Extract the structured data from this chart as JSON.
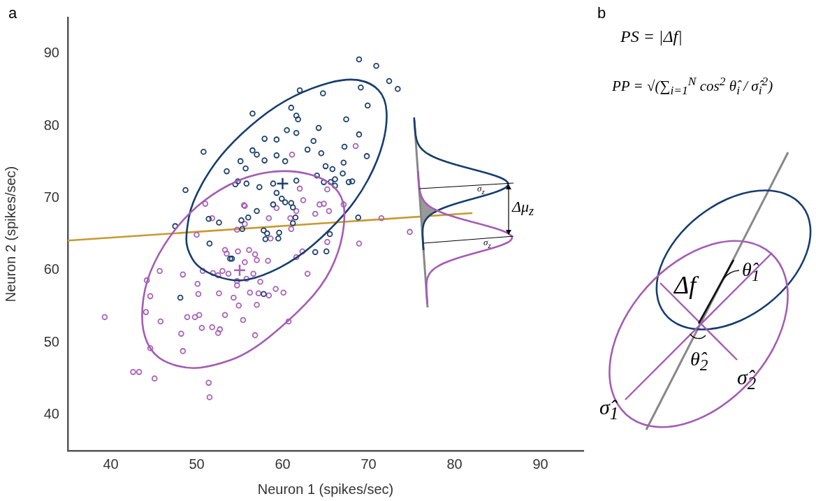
{
  "chart_data": [
    {
      "type": "scatter",
      "title": "a",
      "xlabel": "Neuron 1 (spikes/sec)",
      "ylabel": "Neuron 2 (spikes/sec)",
      "xlim": [
        35,
        95
      ],
      "ylim": [
        35,
        95
      ],
      "xticks": [
        40,
        50,
        60,
        70,
        80,
        90
      ],
      "yticks": [
        40,
        50,
        60,
        70,
        80,
        90
      ],
      "grid": false,
      "legend": false,
      "marker": "circle",
      "annotations": [
        "σ$_{z}$",
        "σ$_{z}$",
        "Δμ$_{z}$"
      ],
      "series": [
        {
          "color": "#1d3f6e",
          "x": [
            68.9,
            70.9,
            72.4,
            73.4,
            62.0,
            64.7,
            69.1,
            69.9,
            56.5,
            61.0,
            61.6,
            61.8,
            67.4,
            50.8,
            60.5,
            61.6,
            64.2,
            63.6,
            68.9,
            69.8,
            57.9,
            59.3,
            56.5,
            57.0,
            57.9,
            59.3,
            60.3,
            62.9,
            64.5,
            65.0,
            67.1,
            55.1,
            55.7,
            53.5,
            54.8,
            54.5,
            55.8,
            57.3,
            58.9,
            61.6,
            64.0,
            65.8,
            66.1,
            65.6,
            59.9,
            60.3,
            58.9,
            59.3,
            64.8,
            66.1,
            67.7,
            48.7,
            47.5,
            51.4,
            52.6,
            55.2,
            56.0,
            57.8,
            58.2,
            58.0,
            59.6,
            59.5,
            61.2,
            61.5,
            61.2,
            61.0,
            65.5,
            65.1,
            63.8,
            51.5,
            53.9,
            57.8,
            68.8,
            57.0,
            55.3,
            67.2,
            68.1,
            67.0,
            48.1,
            54.1
          ],
          "values": [
            89.2,
            88.3,
            86.2,
            85.1,
            84.9,
            84.5,
            85.3,
            82.8,
            81.7,
            82.5,
            81.4,
            80.9,
            80.9,
            76.4,
            79.4,
            79.0,
            79.7,
            77.9,
            78.8,
            75.8,
            78.2,
            78.1,
            76.6,
            76.0,
            75.2,
            75.9,
            75.1,
            76.7,
            76.2,
            74.4,
            74.9,
            75.1,
            74.1,
            73.7,
            72.3,
            71.9,
            72.0,
            71.5,
            72.0,
            72.4,
            73.1,
            74.0,
            72.6,
            72.2,
            69.9,
            69.4,
            69.1,
            70.7,
            72.2,
            71.7,
            72.2,
            71.1,
            66.1,
            67.1,
            66.6,
            66.9,
            67.3,
            65.5,
            65.1,
            64.3,
            65.2,
            64.4,
            66.5,
            67.3,
            68.7,
            69.3,
            65.0,
            62.6,
            62.5,
            63.7,
            61.6,
            56.7,
            67.3,
            68.2,
            65.7,
            77.1,
            72.3,
            73.4,
            56.2,
            61.6
          ]
        },
        {
          "color": "#a862b8",
          "x": [
            68.5,
            65.2,
            74.8,
            71.5,
            68.9,
            61.1,
            62.0,
            65.2,
            62.4,
            64.3,
            64.8,
            55.5,
            51.0,
            67.1,
            55.6,
            59.3,
            61.6,
            63.8,
            65.4,
            51.8,
            55.6,
            58.4,
            60.9,
            61.0,
            54.7,
            50.0,
            58.6,
            53.3,
            53.5,
            54.8,
            56.1,
            56.8,
            57.0,
            58.3,
            55.6,
            62.3,
            61.6,
            62.9,
            56.6,
            55.8,
            54.7,
            54.7,
            57.4,
            50.7,
            51.9,
            52.5,
            53.0,
            53.7,
            48.4,
            45.7,
            44.2,
            50.1,
            50.2,
            52.6,
            54.3,
            54.9,
            56.2,
            57.0,
            57.2,
            58.4,
            59.2,
            60.1,
            44.6,
            44.1,
            39.3,
            45.8,
            48.9,
            49.8,
            50.3,
            53.3,
            55.4,
            50.6,
            51.8,
            52.7,
            52.5,
            48.2,
            56.8,
            60.7,
            44.6,
            48.4,
            42.6,
            43.3,
            45.1,
            51.4,
            51.5
          ],
          "values": [
            77.2,
            63.9,
            65.3,
            67.2,
            63.7,
            76.0,
            71.3,
            71.2,
            69.7,
            69.1,
            69.2,
            69.0,
            69.2,
            69.1,
            68.9,
            68.6,
            68.2,
            67.8,
            68.2,
            67.2,
            66.4,
            67.2,
            67.2,
            65.7,
            65.6,
            64.9,
            64.4,
            62.8,
            62.3,
            62.6,
            62.8,
            62.2,
            61.4,
            61.3,
            61.1,
            62.6,
            61.8,
            59.5,
            59.5,
            58.8,
            58.5,
            57.9,
            58.4,
            59.9,
            59.6,
            59.3,
            59.9,
            59.5,
            59.4,
            59.9,
            58.6,
            58.1,
            56.7,
            56.8,
            56.2,
            55.1,
            56.9,
            55.2,
            56.8,
            56.5,
            57.4,
            56.9,
            56.4,
            54.2,
            53.5,
            52.9,
            53.5,
            53.5,
            53.8,
            53.8,
            53.1,
            52.0,
            52.1,
            51.8,
            51.3,
            51.2,
            51.0,
            52.9,
            49.2,
            48.8,
            45.9,
            45.9,
            45.0,
            44.4,
            42.4
          ]
        },
        {
          "color": "#1d3f6e",
          "marker": "cross",
          "x": [
            60
          ],
          "values": [
            72
          ]
        },
        {
          "color": "#a862b8",
          "marker": "cross",
          "x": [
            55
          ],
          "values": [
            60
          ]
        },
        {
          "type": "line",
          "marker": "none",
          "color": "#c8992f",
          "x": [
            35,
            82.0
          ],
          "values": [
            64.1,
            67.9
          ]
        }
      ]
    },
    {
      "type": "other",
      "title": "b",
      "annotations": [
        "PS = |Δf|",
        "PP = √(∑$_{i=1}$$^{N}$ cos$^{2}$ θ̂$_{i}$ / σ̂$_{i}$$^{2}$)",
        "Δf",
        "θ̂$_{1}$",
        "θ̂$_{2}$",
        "σ̂$_{2}$",
        "σ̂$_{1}$"
      ]
    }
  ]
}
